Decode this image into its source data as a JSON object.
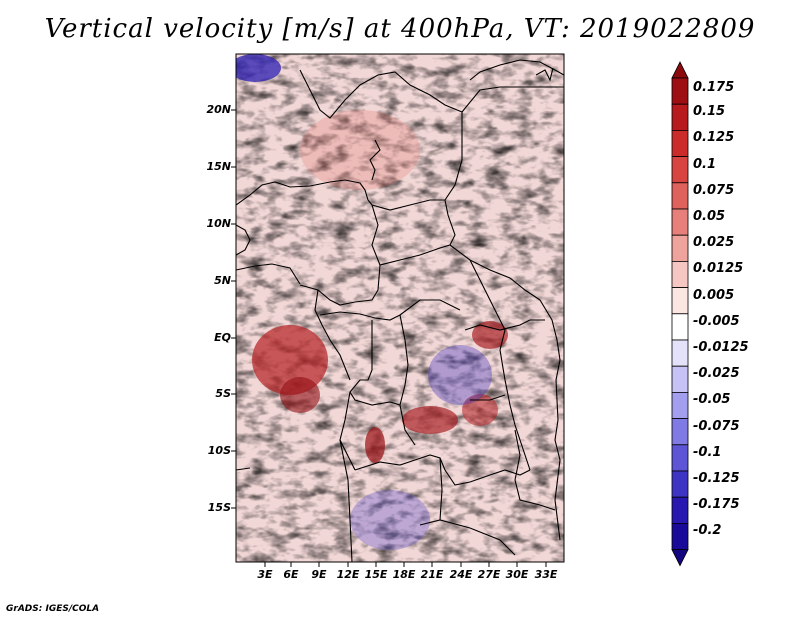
{
  "title": "Vertical velocity [m/s] at 400hPa, VT: 2019022809",
  "credit": "GrADS: IGES/COLA",
  "map": {
    "lat_labels": [
      "20N",
      "15N",
      "10N",
      "5N",
      "EQ",
      "5S",
      "10S",
      "15S"
    ],
    "lon_labels": [
      "3E",
      "6E",
      "9E",
      "12E",
      "15E",
      "18E",
      "21E",
      "24E",
      "27E",
      "30E",
      "33E"
    ]
  },
  "colorbar": {
    "labels": [
      "0.175",
      "0.15",
      "0.125",
      "0.1",
      "0.075",
      "0.05",
      "0.025",
      "0.0125",
      "0.005",
      "-0.005",
      "-0.0125",
      "-0.025",
      "-0.05",
      "-0.075",
      "-0.1",
      "-0.125",
      "-0.175",
      "-0.2"
    ],
    "colors": [
      "#9e0f14",
      "#b81b1e",
      "#cb2c2a",
      "#d84440",
      "#e0625c",
      "#e7807a",
      "#efa39d",
      "#f6c7c2",
      "#fbe6e2",
      "#ffffff",
      "#e4e2fb",
      "#c6c2f5",
      "#a39eee",
      "#807ae4",
      "#5d55d6",
      "#3e34c4",
      "#2818b0",
      "#1a0a9a"
    ],
    "top_arrow_color": "#8b0a0e",
    "bottom_arrow_color": "#140580"
  }
}
